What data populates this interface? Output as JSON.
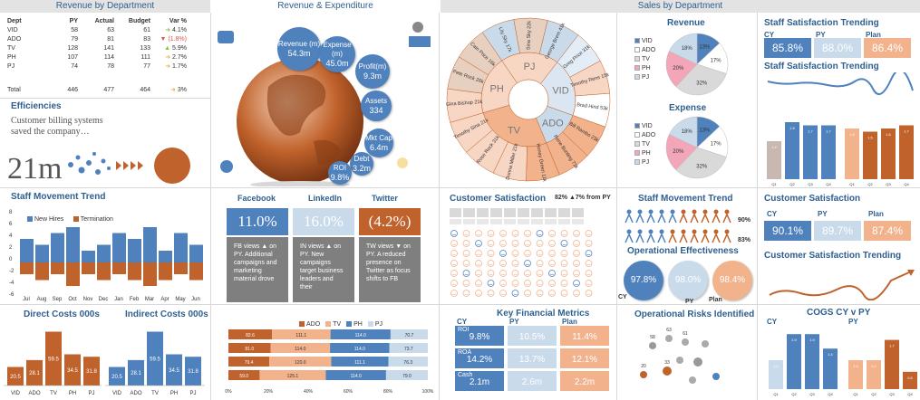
{
  "headers": {
    "revenue_by_dept": "Revenue by Department",
    "revenue_expenditure": "Revenue & Expenditure",
    "sales_by_dept": "Sales by Department"
  },
  "revenue_table": {
    "columns": [
      "Dept",
      "PY",
      "Actual",
      "Budget",
      "Var %"
    ],
    "rows": [
      {
        "dept": "VID",
        "py": "58",
        "actual": "63",
        "budget": "61",
        "var": "4.1%",
        "dir": "right",
        "color": "#8bbf3f"
      },
      {
        "dept": "ADO",
        "py": "79",
        "actual": "81",
        "budget": "83",
        "var": "(1.8%)",
        "dir": "down",
        "color": "#d9534f"
      },
      {
        "dept": "TV",
        "py": "128",
        "actual": "141",
        "budget": "133",
        "var": "5.9%",
        "dir": "up",
        "color": "#8bbf3f"
      },
      {
        "dept": "PH",
        "py": "107",
        "actual": "114",
        "budget": "111",
        "var": "2.7%",
        "dir": "right",
        "color": "#f0ad4e"
      },
      {
        "dept": "PJ",
        "py": "74",
        "actual": "78",
        "budget": "77",
        "var": "1.7%",
        "dir": "right",
        "color": "#f0ad4e"
      }
    ],
    "total": {
      "dept": "Total",
      "py": "446",
      "actual": "477",
      "budget": "464",
      "var": "3%"
    }
  },
  "efficiencies": {
    "title": "Efficiencies",
    "text": "Customer billing systems saved the company…",
    "value": "21m"
  },
  "revexp_bubbles": [
    {
      "label": "Revenue (m)",
      "value": "54.3m"
    },
    {
      "label": "Expense (m)",
      "value": "45.0m"
    },
    {
      "label": "Profit(m)",
      "value": "9.3m"
    },
    {
      "label": "Assets",
      "value": "334"
    },
    {
      "label": "Mkt Cap",
      "value": "6.4m"
    },
    {
      "label": "Debt",
      "value": "3.2m"
    },
    {
      "label": "ROI",
      "value": "9.8%"
    }
  ],
  "sales_sunburst": {
    "inner": [
      "PJ",
      "VID",
      "ADO",
      "TV",
      "PH"
    ],
    "outer": [
      "Lily Sky 17k",
      "Sina Sky 22k",
      "George Brem 41k",
      "Greg Price 31k",
      "Timothy Rens 15k",
      "Brad Hind 53k",
      "Bill Rambo 23k",
      "Rene Bunting 71k",
      "Honey Green 11k",
      "Donna Miller 21k",
      "Rose Rock 31k",
      "Timothy Sina 21k",
      "Gina Bishop 21k",
      "Pete Rock 26k",
      "Cain Price 16k"
    ]
  },
  "revenue_pie": {
    "title": "Revenue",
    "legend": [
      "VID",
      "ADO",
      "TV",
      "PH",
      "PJ"
    ],
    "labels": [
      "13%",
      "17%",
      "32%",
      "20%",
      "18%"
    ]
  },
  "expense_pie": {
    "title": "Expense",
    "legend": [
      "VID",
      "ADO",
      "TV",
      "PH",
      "PJ"
    ],
    "labels": [
      "13%",
      "17%",
      "32%",
      "20%",
      "18%"
    ]
  },
  "staff_sat": {
    "title": "Staff Satisfaction Trending",
    "cy_label": "CY",
    "py_label": "PY",
    "plan_label": "Plan",
    "cy": "85.8%",
    "py": "88.0%",
    "plan": "86.4%",
    "trend_title": "Staff Satisfaction Trending"
  },
  "staff_bars": {
    "groups": [
      {
        "labels": [
          "Q1",
          "Q2",
          "Q3",
          "Q4"
        ],
        "values": [
          "1.2",
          "1.8",
          "1.7",
          "1.7"
        ]
      },
      {
        "labels": [
          "Q1",
          "Q2",
          "Q3",
          "Q4"
        ],
        "values": [
          "1.6",
          "1.5",
          "1.6",
          "1.7"
        ]
      }
    ]
  },
  "staff_movement_chart": {
    "title": "Staff Movement Trend",
    "legend": [
      "New Hires",
      "Termination"
    ],
    "months": [
      "Jul",
      "Aug",
      "Sep",
      "Oct",
      "Nov",
      "Dec",
      "Jan",
      "Feb",
      "Mar",
      "Apr",
      "May",
      "Jun"
    ],
    "hires": [
      4,
      3,
      5,
      6,
      2,
      3,
      5,
      4,
      6,
      2,
      5,
      3
    ],
    "terms": [
      -2,
      -3,
      -2,
      -4,
      -2,
      -3,
      -2,
      -3,
      -4,
      -3,
      -2,
      -3
    ],
    "yticks": [
      "8",
      "6",
      "4",
      "2",
      "0",
      "-2",
      "-4",
      "-6"
    ]
  },
  "social": {
    "facebook": {
      "title": "Facebook",
      "value": "11.0%",
      "note": "FB views ▲ on PY. Additional campaigns and marketing material drove"
    },
    "linkedin": {
      "title": "LinkedIn",
      "value": "16.0%",
      "note": "IN views ▲ on PY. New campaigns target business leaders and their"
    },
    "twitter": {
      "title": "Twitter",
      "value": "(4.2%)",
      "note": "TW views ▼ on PY. A reduced presence on Twitter as focus shifts to FB"
    }
  },
  "customer_sat_left": {
    "title": "Customer Satisfaction",
    "stat": "82% ▲7% from PY"
  },
  "staff_movement_icons": {
    "title": "Staff Movement Trend",
    "v1": "90%",
    "v2": "83%"
  },
  "op_effectiveness": {
    "title": "Operational Effectiveness",
    "cy": "97.8%",
    "py": "98.0%",
    "plan": "98.4%",
    "cy_label": "CY",
    "py_label": "PY",
    "plan_label": "Plan"
  },
  "customer_sat_right": {
    "title": "Customer Satisfaction",
    "cy_label": "CY",
    "py_label": "PY",
    "plan_label": "Plan",
    "cy": "90.1%",
    "py": "89.7%",
    "plan": "87.4%",
    "trend_title": "Customer Satisfaction Trending"
  },
  "direct_costs": {
    "title": "Direct Costs 000s",
    "categories": [
      "VID",
      "ADO",
      "TV",
      "PH",
      "PJ"
    ],
    "values": [
      20.5,
      28.1,
      59.5,
      34.5,
      31.8
    ]
  },
  "indirect_costs": {
    "title": "Indirect Costs 000s",
    "categories": [
      "VID",
      "ADO",
      "TV",
      "PH",
      "PJ"
    ],
    "values": [
      20.5,
      28.1,
      59.5,
      34.5,
      31.8
    ]
  },
  "stacked": {
    "legend": [
      "ADO",
      "TV",
      "PH",
      "PJ"
    ],
    "rows": [
      [
        82.6,
        111.1,
        114.0,
        70.7
      ],
      [
        81.0,
        114.0,
        114.0,
        73.7
      ],
      [
        79.4,
        120.0,
        111.1,
        76.3
      ],
      [
        59.0,
        125.1,
        114.0,
        79.0
      ]
    ],
    "xticks": [
      "0%",
      "20%",
      "40%",
      "60%",
      "80%",
      "100%"
    ]
  },
  "key_financial": {
    "title": "Key Financial Metrics",
    "cy_label": "CY",
    "py_label": "PY",
    "plan_label": "Plan",
    "rows": [
      {
        "label": "ROI",
        "cy": "9.8%",
        "py": "10.5%",
        "plan": "11.4%"
      },
      {
        "label": "ROA",
        "cy": "14.2%",
        "py": "13.7%",
        "plan": "12.1%"
      },
      {
        "label": "Cash",
        "cy": "2.1m",
        "py": "2.6m",
        "plan": "2.2m"
      }
    ]
  },
  "op_risks": {
    "title": "Operational Risks Identified",
    "labels": [
      "58",
      "63",
      "61",
      "20",
      "33"
    ]
  },
  "cogs": {
    "title": "COGS CY v PY",
    "cy_label": "CY",
    "py_label": "PY",
    "groups": [
      {
        "labels": [
          "Q1",
          "Q2",
          "Q3",
          "Q4"
        ],
        "values": [
          "1.0",
          "1.9",
          "1.9",
          "1.4"
        ]
      },
      {
        "labels": [
          "Q1",
          "Q2",
          "Q3",
          "Q4"
        ],
        "values": [
          "1.0",
          "1.0",
          "1.7",
          "0.6"
        ]
      }
    ]
  },
  "colors": {
    "blue": "#4f81bd",
    "light_blue": "#c9daeb",
    "orange": "#f2b28c",
    "dark_orange": "#c0622b",
    "grey": "#7f7f7f",
    "title": "#2e5f8f"
  }
}
